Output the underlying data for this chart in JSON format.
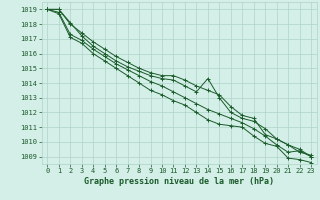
{
  "xlabel": "Graphe pression niveau de la mer (hPa)",
  "ylim": [
    1008.5,
    1019.5
  ],
  "xlim": [
    -0.5,
    23.5
  ],
  "yticks": [
    1009,
    1010,
    1011,
    1012,
    1013,
    1014,
    1015,
    1016,
    1017,
    1018,
    1019
  ],
  "xticks": [
    0,
    1,
    2,
    3,
    4,
    5,
    6,
    7,
    8,
    9,
    10,
    11,
    12,
    13,
    14,
    15,
    16,
    17,
    18,
    19,
    20,
    21,
    22,
    23
  ],
  "background_color": "#d4eee8",
  "grid_color": "#b0d4c8",
  "line_color": "#1a5c2a",
  "series": [
    [
      1019.0,
      1019.0,
      1018.1,
      1017.2,
      1016.5,
      1016.0,
      1015.5,
      1015.1,
      1014.8,
      1014.5,
      1014.3,
      1014.2,
      1013.8,
      1013.4,
      1014.3,
      1013.0,
      1012.0,
      1011.6,
      1011.4,
      1010.9,
      1010.2,
      1009.8,
      1009.5,
      1009.0
    ],
    [
      1019.0,
      1019.0,
      1018.0,
      1017.4,
      1016.8,
      1016.3,
      1015.8,
      1015.4,
      1015.0,
      1014.7,
      1014.5,
      1014.5,
      1014.2,
      1013.8,
      1013.5,
      1013.2,
      1012.4,
      1011.8,
      1011.6,
      1010.5,
      1010.2,
      1009.8,
      1009.3,
      1009.1
    ],
    [
      1019.0,
      1018.8,
      1017.3,
      1016.9,
      1016.3,
      1015.8,
      1015.3,
      1014.9,
      1014.5,
      1014.1,
      1013.8,
      1013.4,
      1013.0,
      1012.6,
      1012.2,
      1011.9,
      1011.6,
      1011.3,
      1010.9,
      1010.4,
      1009.8,
      1009.3,
      1009.4,
      1009.0
    ],
    [
      1019.0,
      1018.7,
      1017.1,
      1016.7,
      1016.0,
      1015.5,
      1015.0,
      1014.5,
      1014.0,
      1013.5,
      1013.2,
      1012.8,
      1012.5,
      1012.0,
      1011.5,
      1011.2,
      1011.1,
      1011.0,
      1010.4,
      1009.9,
      1009.7,
      1008.9,
      1008.8,
      1008.6
    ]
  ],
  "font_color": "#1a5c2a",
  "tick_fontsize": 5.0,
  "label_fontsize": 6.0
}
